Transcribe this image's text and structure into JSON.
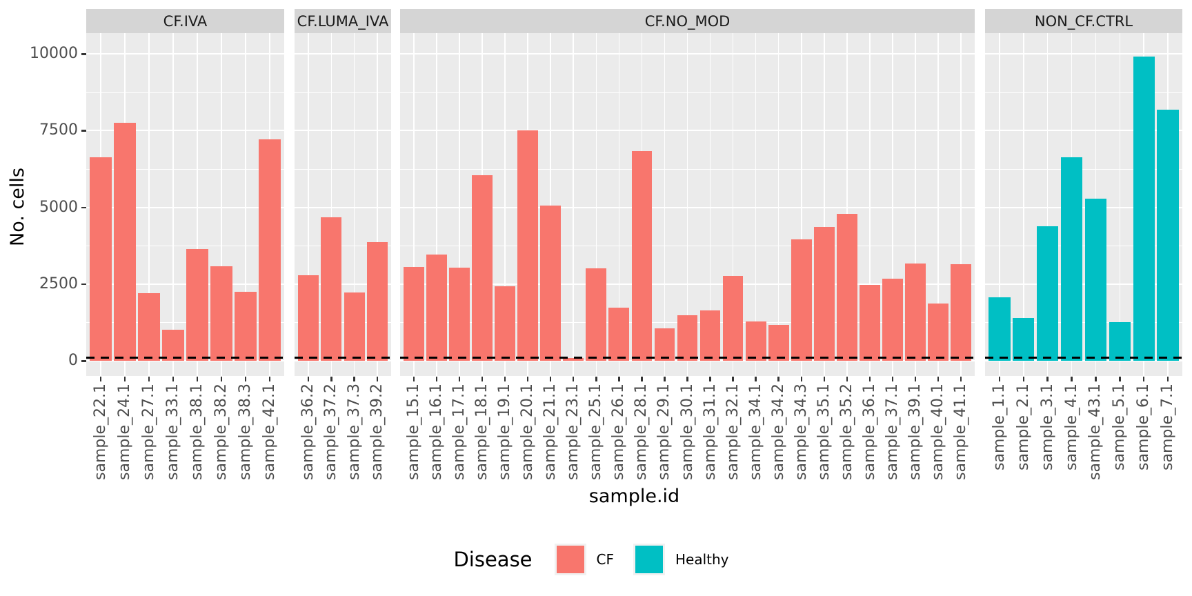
{
  "chart_data": {
    "type": "bar",
    "title": "",
    "ylabel": "No. cells",
    "xlabel": "sample.id",
    "ylim": [
      0,
      10000
    ],
    "yticks": [
      0,
      2500,
      5000,
      7500,
      10000
    ],
    "yticks_minor": [
      1250,
      3750,
      6250,
      8750
    ],
    "grid": "on",
    "panel_background": "#EBEBEB",
    "strip_background": "#D5D5D5",
    "gridline_color": "#ffffff",
    "dashed_threshold_line": 100,
    "legend": {
      "title": "Disease",
      "position": "bottom",
      "entries": [
        {
          "label": "CF",
          "color": "#F8766D"
        },
        {
          "label": "Healthy",
          "color": "#00BFC4"
        }
      ]
    },
    "facets": [
      {
        "label": "CF.IVA",
        "disease": "CF",
        "color": "#F8766D",
        "categories": [
          "sample_22.1",
          "sample_24.1",
          "sample_27.1",
          "sample_33.1",
          "sample_38.1",
          "sample_38.2",
          "sample_38.3",
          "sample_42.1"
        ],
        "values": [
          6620,
          7760,
          2200,
          1010,
          3640,
          3090,
          2250,
          7210
        ]
      },
      {
        "label": "CF.LUMA_IVA",
        "disease": "CF",
        "color": "#F8766D",
        "categories": [
          "sample_36.2",
          "sample_37.2",
          "sample_37.3",
          "sample_39.2"
        ],
        "values": [
          2790,
          4670,
          2230,
          3870
        ]
      },
      {
        "label": "CF.NO_MOD",
        "disease": "CF",
        "color": "#F8766D",
        "categories": [
          "sample_15.1",
          "sample_16.1",
          "sample_17.1",
          "sample_18.1",
          "sample_19.1",
          "sample_20.1",
          "sample_21.1",
          "sample_23.1",
          "sample_25.1",
          "sample_26.1",
          "sample_28.1",
          "sample_29.1",
          "sample_30.1",
          "sample_31.1",
          "sample_32.1",
          "sample_34.1",
          "sample_34.2",
          "sample_34.3",
          "sample_35.1",
          "sample_35.2",
          "sample_36.1",
          "sample_37.1",
          "sample_39.1",
          "sample_40.1",
          "sample_41.1"
        ],
        "values": [
          3060,
          3460,
          3030,
          6050,
          2430,
          7510,
          5060,
          100,
          3010,
          1730,
          6830,
          1060,
          1480,
          1640,
          2760,
          1280,
          1170,
          3950,
          4360,
          4790,
          2470,
          2670,
          3170,
          1870,
          3150
        ]
      },
      {
        "label": "NON_CF.CTRL",
        "disease": "Healthy",
        "color": "#00BFC4",
        "categories": [
          "sample_1.1",
          "sample_2.1",
          "sample_3.1",
          "sample_4.1",
          "sample_43.1",
          "sample_5.1",
          "sample_6.1",
          "sample_7.1"
        ],
        "values": [
          2070,
          1400,
          4380,
          6630,
          5280,
          1260,
          9900,
          8170
        ]
      }
    ]
  }
}
